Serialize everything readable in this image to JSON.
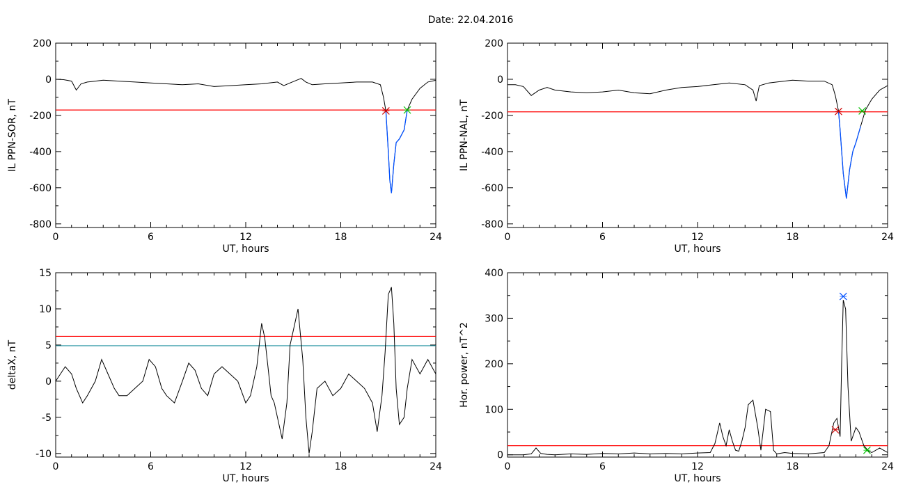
{
  "figure_title": "Date:  22.04.2016",
  "colors": {
    "axis": "#000000",
    "threshold": "#ff0000",
    "secondary_line": "#1f8f9f",
    "event": "#0050ff",
    "onset_marker": "#cc0000",
    "end_marker": "#00c000"
  },
  "chart_data": [
    {
      "type": "line",
      "xlabel": "UT, hours",
      "ylabel": "IL PPN-SOR, nT",
      "xlim": [
        0,
        24
      ],
      "ylim": [
        -820,
        200
      ],
      "xticks": [
        0,
        6,
        12,
        18,
        24
      ],
      "yticks": [
        200,
        0,
        -200,
        -400,
        -600,
        -800
      ],
      "series": [
        {
          "x": [
            0,
            0.5,
            1.0,
            1.3,
            1.6,
            2.0,
            2.5,
            3.0,
            4.0,
            5.0,
            6.0,
            7.0,
            8.0,
            9.0,
            10.0,
            11.0,
            12.0,
            13.0,
            14.0,
            14.4,
            14.8,
            15.5,
            15.8,
            16.2,
            17.0,
            18.0,
            19.0,
            20.0,
            20.5,
            20.7,
            20.85,
            21.0,
            21.1,
            21.2,
            21.35,
            21.5,
            21.7,
            22.0,
            22.2,
            22.5,
            23.0,
            23.5,
            24.0
          ],
          "y": [
            0,
            -2,
            -10,
            -60,
            -25,
            -15,
            -10,
            -5,
            -10,
            -15,
            -20,
            -25,
            -30,
            -25,
            -40,
            -35,
            -30,
            -25,
            -15,
            -35,
            -20,
            5,
            -15,
            -30,
            -25,
            -20,
            -15,
            -15,
            -30,
            -100,
            -175,
            -400,
            -560,
            -630,
            -470,
            -350,
            -330,
            -280,
            -170,
            -110,
            -50,
            -15,
            -5
          ]
        }
      ],
      "threshold": -170,
      "event": {
        "x": [
          20.85,
          21.0,
          21.1,
          21.2,
          21.35,
          21.5,
          21.7,
          22.0,
          22.2
        ],
        "y": [
          -175,
          -400,
          -560,
          -630,
          -470,
          -350,
          -330,
          -280,
          -170
        ]
      },
      "markers": [
        {
          "x": 20.85,
          "y": -175,
          "color": "#cc0000"
        },
        {
          "x": 22.2,
          "y": -170,
          "color": "#00c000"
        }
      ]
    },
    {
      "type": "line",
      "xlabel": "UT, hours",
      "ylabel": "IL PPN-NAL, nT",
      "xlim": [
        0,
        24
      ],
      "ylim": [
        -820,
        200
      ],
      "xticks": [
        0,
        6,
        12,
        18,
        24
      ],
      "yticks": [
        200,
        0,
        -200,
        -400,
        -600,
        -800
      ],
      "series": [
        {
          "x": [
            0,
            0.5,
            1.0,
            1.5,
            2.0,
            2.5,
            3.0,
            4.0,
            5.0,
            6.0,
            7.0,
            8.0,
            9.0,
            10.0,
            11.0,
            12.0,
            13.0,
            14.0,
            15.0,
            15.5,
            15.7,
            15.9,
            16.5,
            17.0,
            18.0,
            19.0,
            20.0,
            20.5,
            20.7,
            20.9,
            21.0,
            21.2,
            21.4,
            21.6,
            21.8,
            22.0,
            22.3,
            22.6,
            23.0,
            23.5,
            24.0
          ],
          "y": [
            -30,
            -30,
            -40,
            -90,
            -60,
            -45,
            -60,
            -70,
            -75,
            -70,
            -60,
            -75,
            -80,
            -60,
            -45,
            -40,
            -30,
            -20,
            -30,
            -60,
            -120,
            -35,
            -20,
            -15,
            -5,
            -10,
            -10,
            -30,
            -90,
            -175,
            -280,
            -520,
            -660,
            -500,
            -400,
            -350,
            -260,
            -170,
            -110,
            -60,
            -35
          ]
        }
      ],
      "threshold": -180,
      "event": {
        "x": [
          20.9,
          21.0,
          21.2,
          21.4,
          21.6,
          21.8,
          22.0,
          22.3
        ],
        "y": [
          -175,
          -280,
          -520,
          -660,
          -500,
          -400,
          -350,
          -260
        ]
      },
      "markers": [
        {
          "x": 20.9,
          "y": -178,
          "color": "#cc0000"
        },
        {
          "x": 22.4,
          "y": -175,
          "color": "#00c000"
        }
      ]
    },
    {
      "type": "line",
      "xlabel": "UT, hours",
      "ylabel": "deltaX, nT",
      "xlim": [
        0,
        24
      ],
      "ylim": [
        -10.5,
        15
      ],
      "xticks": [
        0,
        6,
        12,
        18,
        24
      ],
      "yticks": [
        15,
        10,
        5,
        0,
        -5,
        -10
      ],
      "series": [
        {
          "x": [
            0,
            0.3,
            0.6,
            1.0,
            1.3,
            1.7,
            2.0,
            2.5,
            2.9,
            3.3,
            3.7,
            4.0,
            4.5,
            5.0,
            5.5,
            5.9,
            6.3,
            6.7,
            7.0,
            7.5,
            8.0,
            8.4,
            8.8,
            9.2,
            9.6,
            10.0,
            10.5,
            11.0,
            11.5,
            12.0,
            12.3,
            12.7,
            13.0,
            13.2,
            13.4,
            13.6,
            13.8,
            14.0,
            14.3,
            14.6,
            14.8,
            15.0,
            15.3,
            15.6,
            15.8,
            16.0,
            16.2,
            16.5,
            17.0,
            17.5,
            18.0,
            18.5,
            19.0,
            19.5,
            20.0,
            20.3,
            20.6,
            20.8,
            21.0,
            21.2,
            21.35,
            21.5,
            21.7,
            22.0,
            22.2,
            22.5,
            23.0,
            23.5,
            24.0
          ],
          "y": [
            0,
            1,
            2,
            1,
            -1,
            -3,
            -2,
            0,
            3,
            1,
            -1,
            -2,
            -2,
            -1,
            0,
            3,
            2,
            -1,
            -2,
            -3,
            0,
            2.5,
            1.5,
            -1,
            -2,
            1,
            2,
            1,
            0,
            -3,
            -2,
            2,
            8,
            6,
            2,
            -2,
            -3,
            -5,
            -8,
            -3,
            5,
            7,
            10,
            3,
            -5,
            -10,
            -7,
            -1,
            0,
            -2,
            -1,
            1,
            0,
            -1,
            -3,
            -7,
            -2,
            4,
            12,
            13,
            8,
            -1,
            -6,
            -5,
            -1,
            3,
            1,
            3,
            1
          ]
        }
      ],
      "threshold": 6.2,
      "secondary_threshold": 4.9
    },
    {
      "type": "line",
      "xlabel": "UT, hours",
      "ylabel": "Hor. power, nT^2",
      "xlim": [
        0,
        24
      ],
      "ylim": [
        -5,
        400
      ],
      "xticks": [
        0,
        6,
        12,
        18,
        24
      ],
      "yticks": [
        400,
        300,
        200,
        100,
        0
      ],
      "series": [
        {
          "x": [
            0,
            1.0,
            1.5,
            1.8,
            2.1,
            2.5,
            3.0,
            4.0,
            5.0,
            6.0,
            7.0,
            8.0,
            9.0,
            10.0,
            11.0,
            12.0,
            12.8,
            13.1,
            13.4,
            13.6,
            13.8,
            14.0,
            14.2,
            14.4,
            14.6,
            14.8,
            15.0,
            15.2,
            15.5,
            15.8,
            16.0,
            16.3,
            16.6,
            16.8,
            17.0,
            17.5,
            18.0,
            19.0,
            20.0,
            20.3,
            20.6,
            20.8,
            21.0,
            21.1,
            21.2,
            21.35,
            21.5,
            21.7,
            22.0,
            22.2,
            22.5,
            22.8,
            23.0,
            23.5,
            24.0
          ],
          "y": [
            0,
            0,
            2,
            15,
            3,
            1,
            0,
            2,
            1,
            3,
            2,
            4,
            2,
            3,
            2,
            4,
            5,
            25,
            70,
            40,
            20,
            55,
            30,
            10,
            8,
            30,
            60,
            110,
            120,
            60,
            10,
            100,
            95,
            10,
            2,
            5,
            3,
            2,
            5,
            20,
            70,
            80,
            40,
            200,
            340,
            320,
            150,
            30,
            60,
            50,
            20,
            8,
            5,
            15,
            5
          ]
        }
      ],
      "threshold": 20,
      "markers": [
        {
          "x": 20.7,
          "y": 55,
          "color": "#cc0000"
        },
        {
          "x": 21.2,
          "y": 348,
          "color": "#0050ff"
        },
        {
          "x": 22.7,
          "y": 10,
          "color": "#00c000"
        }
      ]
    }
  ]
}
